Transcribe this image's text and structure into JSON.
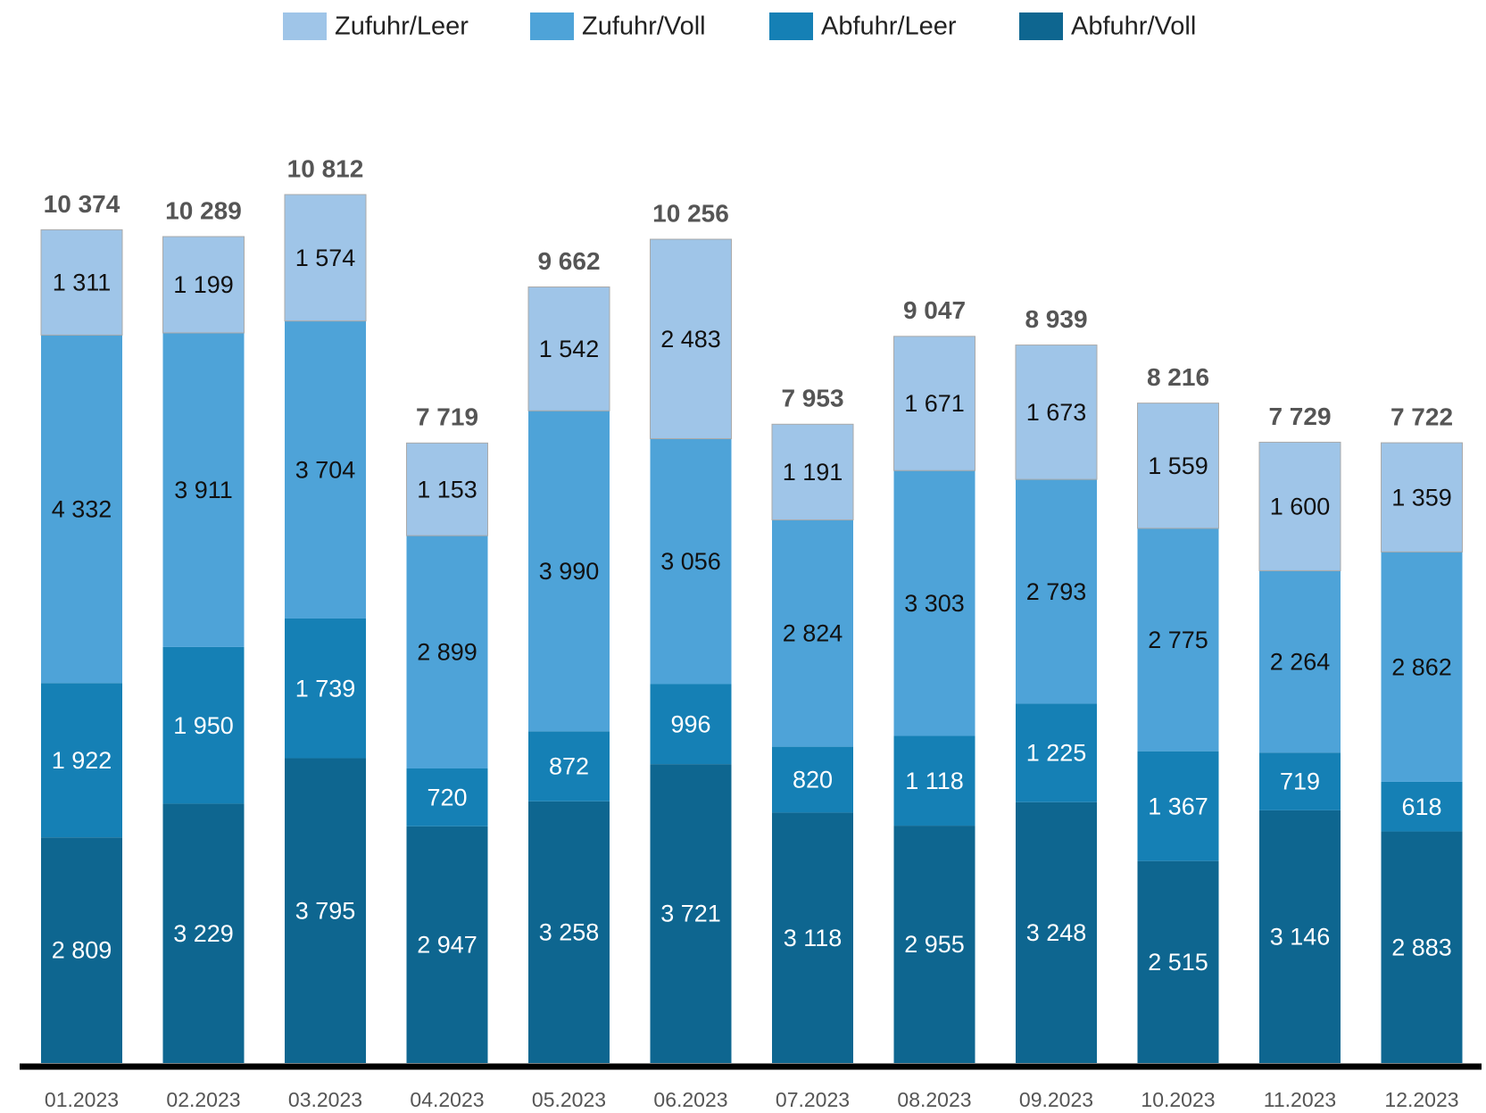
{
  "chart_data": {
    "type": "stacked_bar",
    "categories": [
      "01.2023",
      "02.2023",
      "03.2023",
      "04.2023",
      "05.2023",
      "06.2023",
      "07.2023",
      "08.2023",
      "09.2023",
      "10.2023",
      "11.2023",
      "12.2023"
    ],
    "series": [
      {
        "name": "Zufuhr/Leer",
        "color": "#9fc5e8",
        "label_color": "#111111",
        "values": [
          1311,
          1199,
          1574,
          1153,
          1542,
          2483,
          1191,
          1671,
          1673,
          1559,
          1600,
          1359
        ],
        "value_labels": [
          "1 311",
          "1 199",
          "1 574",
          "1 153",
          "1 542",
          "2 483",
          "1 191",
          "1 671",
          "1 673",
          "1 559",
          "1 600",
          "1 359"
        ]
      },
      {
        "name": "Zufuhr/Voll",
        "color": "#4ea3d8",
        "label_color": "#111111",
        "values": [
          4332,
          3911,
          3704,
          2899,
          3990,
          3056,
          2824,
          3303,
          2793,
          2775,
          2264,
          2862
        ],
        "value_labels": [
          "4 332",
          "3 911",
          "3 704",
          "2 899",
          "3 990",
          "3 056",
          "2 824",
          "3 303",
          "2 793",
          "2 775",
          "2 264",
          "2 862"
        ]
      },
      {
        "name": "Abfuhr/Leer",
        "color": "#1580b5",
        "label_color": "#ffffff",
        "values": [
          1922,
          1950,
          1739,
          720,
          872,
          996,
          820,
          1118,
          1225,
          1367,
          719,
          618
        ],
        "value_labels": [
          "1 922",
          "1 950",
          "1 739",
          "720",
          "872",
          "996",
          "820",
          "1 118",
          "1 225",
          "1 367",
          "719",
          "618"
        ]
      },
      {
        "name": "Abfuhr/Voll",
        "color": "#0e6690",
        "label_color": "#ffffff",
        "values": [
          2809,
          3229,
          3795,
          2947,
          3258,
          3721,
          3118,
          2955,
          3248,
          2515,
          3146,
          2883
        ],
        "value_labels": [
          "2 809",
          "3 229",
          "3 795",
          "2 947",
          "3 258",
          "3 721",
          "3 118",
          "2 955",
          "3 248",
          "2 515",
          "3 146",
          "2 883"
        ]
      }
    ],
    "totals": {
      "values": [
        10374,
        10289,
        10812,
        7719,
        9662,
        10256,
        7953,
        9047,
        8939,
        8216,
        7729,
        7722
      ],
      "value_labels": [
        "10 374",
        "10 289",
        "10 812",
        "7 719",
        "9 662",
        "10 256",
        "7 953",
        "9 047",
        "8 939",
        "8 216",
        "7 729",
        "7 722"
      ]
    },
    "legend": "top"
  }
}
